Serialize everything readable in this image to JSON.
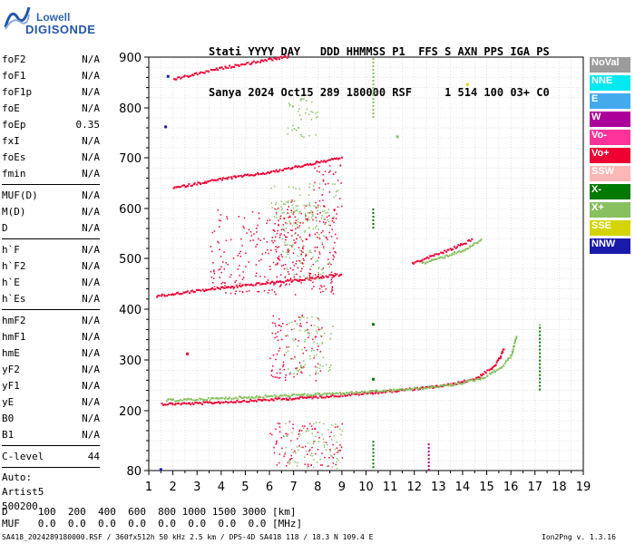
{
  "logo": {
    "brand_top": "Lowell",
    "brand_bottom": "DIGISONDE"
  },
  "header": {
    "line1": "Stati YYYY DAY   DDD HHMMSS P1  FFS S AXN PPS IGA PS",
    "line2": "Sanya 2024 Oct15 289 180000 RSF     1 514 100 03+ C0"
  },
  "params": {
    "group1": [
      {
        "name": "foF2",
        "value": "N/A"
      },
      {
        "name": "foF1",
        "value": "N/A"
      },
      {
        "name": "foF1p",
        "value": "N/A"
      },
      {
        "name": "foE",
        "value": "N/A"
      },
      {
        "name": "foEp",
        "value": "0.35"
      },
      {
        "name": "fxI",
        "value": "N/A"
      },
      {
        "name": "foEs",
        "value": "N/A"
      },
      {
        "name": "fmin",
        "value": "N/A"
      }
    ],
    "group2": [
      {
        "name": "MUF(D)",
        "value": "N/A"
      },
      {
        "name": "M(D)",
        "value": "N/A"
      },
      {
        "name": "D",
        "value": "N/A"
      }
    ],
    "group3": [
      {
        "name": "h`F",
        "value": "N/A"
      },
      {
        "name": "h`F2",
        "value": "N/A"
      },
      {
        "name": "h`E",
        "value": "N/A"
      },
      {
        "name": "h`Es",
        "value": "N/A"
      }
    ],
    "group4": [
      {
        "name": "hmF2",
        "value": "N/A"
      },
      {
        "name": "hmF1",
        "value": "N/A"
      },
      {
        "name": "hmE",
        "value": "N/A"
      },
      {
        "name": "yF2",
        "value": "N/A"
      },
      {
        "name": "yF1",
        "value": "N/A"
      },
      {
        "name": "yE",
        "value": "N/A"
      },
      {
        "name": "B0",
        "value": "N/A"
      },
      {
        "name": "B1",
        "value": "N/A"
      }
    ],
    "clevel": {
      "name": "C-level",
      "value": "44"
    },
    "auto": [
      "Auto:",
      "Artist5",
      "500200"
    ]
  },
  "legend": [
    {
      "label": "NoVal",
      "bg": "#9b9b9b",
      "fg": "#ffffff"
    },
    {
      "label": "NNE",
      "bg": "#00e8f0",
      "fg": "#ffffff"
    },
    {
      "label": "E",
      "bg": "#44aaee",
      "fg": "#ffffff"
    },
    {
      "label": "W",
      "bg": "#aa0099",
      "fg": "#ffffff"
    },
    {
      "label": "Vo-",
      "bg": "#ff3399",
      "fg": "#ffffff"
    },
    {
      "label": "Vo+",
      "bg": "#ee0033",
      "fg": "#ffffff"
    },
    {
      "label": "SSW",
      "bg": "#ffb6b6",
      "fg": "#ffffff"
    },
    {
      "label": "X-",
      "bg": "#007a00",
      "fg": "#ffffff"
    },
    {
      "label": "X+",
      "bg": "#88c060",
      "fg": "#ffffff"
    },
    {
      "label": "SSE",
      "bg": "#d4d400",
      "fg": "#ffffff"
    },
    {
      "label": "NNW",
      "bg": "#1a1aaa",
      "fg": "#ffffff"
    }
  ],
  "footer": {
    "d_line": "D     100  200  400  600  800 1000 1500 3000 [km]",
    "muf_line": "MUF   0.0  0.0  0.0  0.0  0.0  0.0  0.0  0.0 [MHz]",
    "info_left": "SA418_2024289180000.RSF / 360fx512h 50 kHz 2.5 km / DPS-4D SA418 118 / 18.3 N 109.4 E",
    "info_right": "Ion2Png v. 1.3.16"
  },
  "chart_data": {
    "type": "scatter",
    "xlim": [
      1,
      19
    ],
    "ylim": [
      80,
      900
    ],
    "x_ticks": [
      1,
      2,
      3,
      4,
      5,
      6,
      7,
      8,
      9,
      10,
      11,
      12,
      13,
      14,
      15,
      16,
      17,
      18,
      19
    ],
    "y_ticks": [
      80,
      200,
      300,
      400,
      500,
      600,
      700,
      800,
      900
    ],
    "x_tick_labels": [
      "1",
      "2",
      "3",
      "4",
      "5",
      "6",
      "7",
      "8",
      "9",
      "10",
      "11",
      "12",
      "13",
      "14",
      "15",
      "16",
      "17",
      "18",
      "19"
    ],
    "y_tick_labels": [
      "80",
      "200",
      "300",
      "400",
      "500",
      "600",
      "700",
      "800",
      "900"
    ],
    "grid": true,
    "traces": [
      {
        "color": "#ee0033",
        "points": [
          [
            1.5,
            215
          ],
          [
            3,
            216
          ],
          [
            5,
            221
          ],
          [
            7,
            226
          ],
          [
            9,
            232
          ],
          [
            11,
            240
          ],
          [
            12.5,
            247
          ],
          [
            13.5,
            253
          ],
          [
            14.5,
            265
          ],
          [
            15.2,
            285
          ],
          [
            15.5,
            305
          ],
          [
            15.7,
            325
          ]
        ]
      },
      {
        "color": "#88c060",
        "points": [
          [
            1.7,
            222
          ],
          [
            3,
            224
          ],
          [
            5,
            228
          ],
          [
            7,
            232
          ],
          [
            9,
            236
          ],
          [
            10.5,
            240
          ],
          [
            12,
            245
          ],
          [
            13.5,
            252
          ],
          [
            14.8,
            266
          ],
          [
            15.6,
            288
          ],
          [
            16,
            312
          ],
          [
            16.2,
            350
          ]
        ]
      },
      {
        "color": "#ee0033",
        "points": [
          [
            1.3,
            427
          ],
          [
            3,
            438
          ],
          [
            5,
            449
          ],
          [
            7,
            458
          ],
          [
            9,
            470
          ]
        ]
      },
      {
        "color": "#ee0033",
        "points": [
          [
            2,
            642
          ],
          [
            4,
            660
          ],
          [
            6,
            673
          ],
          [
            7,
            683
          ],
          [
            9,
            702
          ]
        ]
      },
      {
        "color": "#ee0033",
        "points": [
          [
            2,
            858
          ],
          [
            4,
            880
          ],
          [
            5.5,
            893
          ],
          [
            6.8,
            903
          ]
        ]
      },
      {
        "color": "#ee0033",
        "points": [
          [
            11.9,
            492
          ],
          [
            12.6,
            505
          ],
          [
            13.4,
            518
          ],
          [
            14.4,
            540
          ]
        ]
      },
      {
        "color": "#88c060",
        "points": [
          [
            12.3,
            492
          ],
          [
            13.2,
            505
          ],
          [
            14.1,
            520
          ],
          [
            14.8,
            541
          ]
        ]
      }
    ],
    "clusters": [
      {
        "x": [
          6.2,
          7.5
        ],
        "y": [
          470,
          620
        ],
        "color": "#ee0033"
      },
      {
        "x": [
          6.5,
          8.5
        ],
        "y": [
          460,
          610
        ],
        "color": "#88c060"
      },
      {
        "x": [
          3.5,
          8.8
        ],
        "y": [
          430,
          600
        ],
        "color": "#ee0033"
      },
      {
        "x": [
          6.0,
          8.8
        ],
        "y": [
          560,
          650
        ],
        "color": "#88c060"
      },
      {
        "x": [
          6.5,
          8.0
        ],
        "y": [
          740,
          820
        ],
        "color": "#88c060"
      },
      {
        "x": [
          6.0,
          8.2
        ],
        "y": [
          260,
          390
        ],
        "color": "#ee0033"
      },
      {
        "x": [
          6.6,
          8.6
        ],
        "y": [
          270,
          390
        ],
        "color": "#88c060"
      },
      {
        "x": [
          6.0,
          9.0
        ],
        "y": [
          90,
          180
        ],
        "color": "#ee0033"
      },
      {
        "x": [
          6.5,
          9.0
        ],
        "y": [
          85,
          180
        ],
        "color": "#88c060"
      },
      {
        "x": [
          7.8,
          9.0
        ],
        "y": [
          600,
          690
        ],
        "color": "#ee0033"
      }
    ],
    "vertical_marks": [
      {
        "x": 10.3,
        "y": [
          85,
          140
        ],
        "color": "#007a00"
      },
      {
        "x": 10.3,
        "y": [
          560,
          600
        ],
        "color": "#007a00"
      },
      {
        "x": 10.3,
        "y": [
          780,
          900
        ],
        "color": "#88c060"
      },
      {
        "x": 12.6,
        "y": [
          80,
          135
        ],
        "color": "#aa0099"
      },
      {
        "x": 17.2,
        "y": [
          240,
          370
        ],
        "color": "#007a00"
      }
    ],
    "isolated_points": [
      {
        "x": 1.8,
        "y": 862,
        "color": "#1a1aaa"
      },
      {
        "x": 1.7,
        "y": 762,
        "color": "#1a1aaa"
      },
      {
        "x": 1.5,
        "y": 82,
        "color": "#1a1aaa"
      },
      {
        "x": 2.6,
        "y": 312,
        "color": "#ee0033"
      },
      {
        "x": 10.3,
        "y": 370,
        "color": "#007a00"
      },
      {
        "x": 10.3,
        "y": 262,
        "color": "#007a00"
      },
      {
        "x": 14.2,
        "y": 846,
        "color": "#d4d400"
      },
      {
        "x": 11.3,
        "y": 742,
        "color": "#88c060"
      }
    ]
  }
}
